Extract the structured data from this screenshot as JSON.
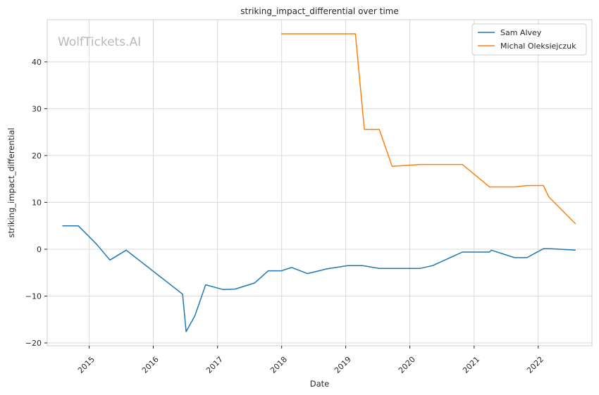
{
  "watermark": "WolfTickets.AI",
  "chart_data": {
    "type": "line",
    "title": "striking_impact_differential over time",
    "xlabel": "Date",
    "ylabel": "striking_impact_differential",
    "grid": true,
    "legend_position": "top-right",
    "x_ticks": [
      "2015",
      "2016",
      "2017",
      "2018",
      "2019",
      "2020",
      "2021",
      "2022"
    ],
    "y_ticks": [
      -20,
      -10,
      0,
      10,
      20,
      30,
      40
    ],
    "xlim": [
      "2014-05-07",
      "2022-11-03"
    ],
    "ylim": [
      -20.6,
      49
    ],
    "series": [
      {
        "name": "Sam Alvey",
        "color": "#1f77b4",
        "points": [
          [
            "2014-08-01",
            5.0
          ],
          [
            "2014-10-31",
            5.0
          ],
          [
            "2015-02-14",
            1.0
          ],
          [
            "2015-04-29",
            -2.3
          ],
          [
            "2015-07-31",
            -0.2
          ],
          [
            "2016-06-16",
            -9.6
          ],
          [
            "2016-07-06",
            -17.6
          ],
          [
            "2016-08-25",
            -14.2
          ],
          [
            "2016-10-25",
            -7.6
          ],
          [
            "2017-02-01",
            -8.6
          ],
          [
            "2017-04-12",
            -8.5
          ],
          [
            "2017-07-31",
            -7.2
          ],
          [
            "2017-10-17",
            -4.6
          ],
          [
            "2017-12-30",
            -4.6
          ],
          [
            "2018-02-27",
            -3.9
          ],
          [
            "2018-05-28",
            -5.2
          ],
          [
            "2018-09-15",
            -4.2
          ],
          [
            "2019-01-13",
            -3.5
          ],
          [
            "2019-04-07",
            -3.5
          ],
          [
            "2019-07-11",
            -4.1
          ],
          [
            "2020-02-29",
            -4.1
          ],
          [
            "2020-05-10",
            -3.5
          ],
          [
            "2020-10-26",
            -0.6
          ],
          [
            "2021-03-30",
            -0.6
          ],
          [
            "2021-04-09",
            -0.2
          ],
          [
            "2021-08-19",
            -1.8
          ],
          [
            "2021-10-29",
            -1.8
          ],
          [
            "2022-01-30",
            0.1
          ],
          [
            "2022-03-12",
            0.1
          ],
          [
            "2022-08-02",
            -0.2
          ]
        ]
      },
      {
        "name": "Michal Oleksiejczuk",
        "color": "#ff7f0e",
        "points": [
          [
            "2017-12-30",
            46.0
          ],
          [
            "2019-02-25",
            46.0
          ],
          [
            "2019-04-17",
            25.6
          ],
          [
            "2019-07-11",
            25.6
          ],
          [
            "2019-09-22",
            17.7
          ],
          [
            "2020-02-27",
            18.1
          ],
          [
            "2020-10-26",
            18.1
          ],
          [
            "2021-03-30",
            13.3
          ],
          [
            "2021-08-19",
            13.3
          ],
          [
            "2021-10-29",
            13.6
          ],
          [
            "2022-01-30",
            13.6
          ],
          [
            "2022-03-02",
            11.2
          ],
          [
            "2022-08-02",
            5.4
          ]
        ]
      }
    ]
  }
}
